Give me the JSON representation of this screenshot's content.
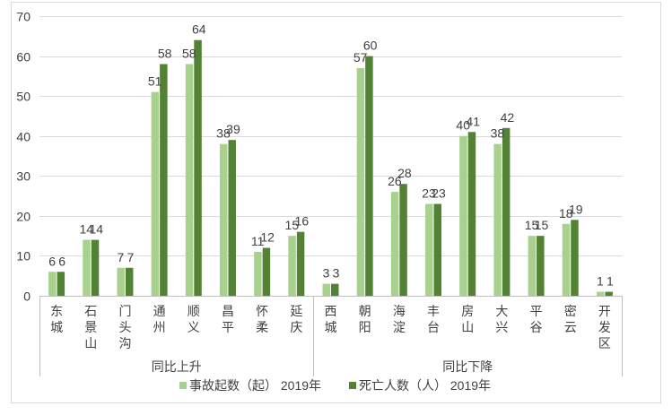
{
  "chart_data": {
    "type": "bar",
    "ylim": [
      0,
      70
    ],
    "yticks": [
      0,
      10,
      20,
      30,
      40,
      50,
      60,
      70
    ],
    "grid": true,
    "legend_position": "bottom",
    "categories": [
      "东城",
      "石景山",
      "门头沟",
      "通州",
      "顺义",
      "昌平",
      "怀柔",
      "延庆",
      "西城",
      "朝阳",
      "海淀",
      "丰台",
      "房山",
      "大兴",
      "平谷",
      "密云",
      "开发区"
    ],
    "groups": [
      {
        "label": "同比上升",
        "start": 0,
        "end": 7
      },
      {
        "label": "同比下降",
        "start": 8,
        "end": 16
      }
    ],
    "series": [
      {
        "name": "事故起数（起） 2019年",
        "color": "#a9d18e",
        "values": [
          6,
          14,
          7,
          51,
          58,
          38,
          11,
          15,
          3,
          57,
          26,
          23,
          40,
          38,
          15,
          18,
          1
        ]
      },
      {
        "name": "死亡人数（人） 2019年",
        "color": "#548235",
        "values": [
          6,
          14,
          7,
          58,
          64,
          39,
          12,
          16,
          3,
          60,
          28,
          23,
          41,
          42,
          15,
          19,
          1
        ]
      }
    ]
  }
}
